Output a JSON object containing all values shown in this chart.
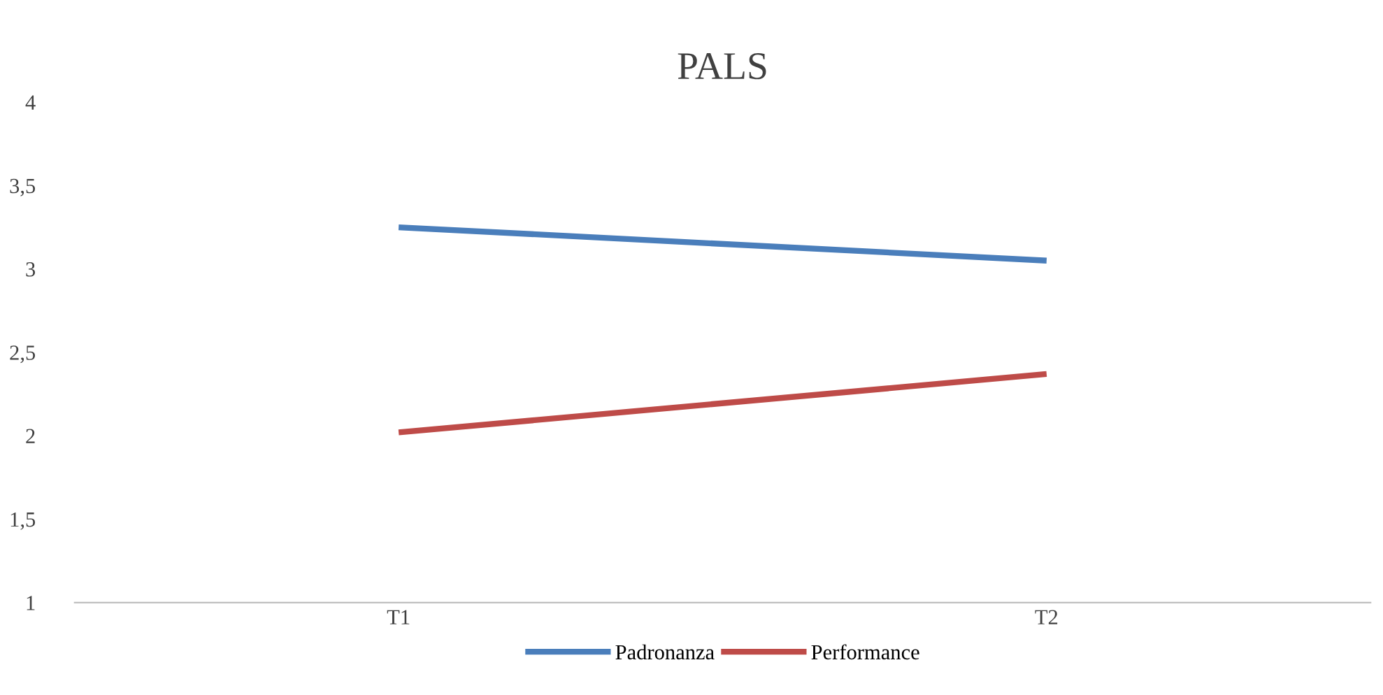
{
  "chart_data": {
    "type": "line",
    "title": "PALS",
    "categories": [
      "T1",
      "T2"
    ],
    "series": [
      {
        "name": "Padronanza",
        "color": "#4a7ebb",
        "values": [
          3.25,
          3.05
        ]
      },
      {
        "name": "Performance",
        "color": "#be4b48",
        "values": [
          2.02,
          2.37
        ]
      }
    ],
    "ylim": [
      1,
      4
    ],
    "yticks": [
      1,
      {
        "value": 1.5,
        "label": "1,5"
      },
      2,
      {
        "value": 2.5,
        "label": "2,5"
      },
      3,
      {
        "value": 3.5,
        "label": "3,5"
      },
      4
    ],
    "grid": false,
    "legend": "bottom",
    "marker": "none",
    "line_style": "solid"
  }
}
